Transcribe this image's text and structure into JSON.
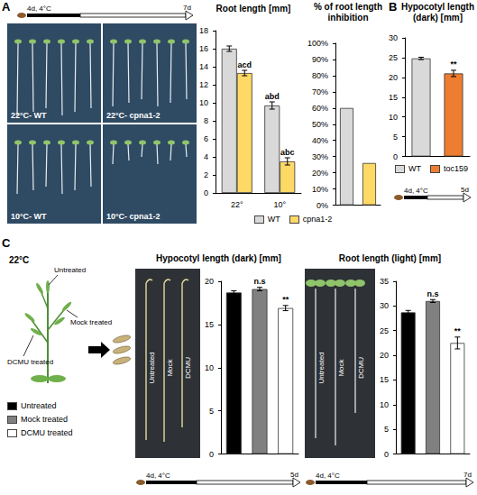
{
  "panel_letters": [
    "A",
    "B",
    "C"
  ],
  "chart_data": [
    {
      "type": "bar",
      "title": "Root length [mm]",
      "categories": [
        "22°",
        "10°"
      ],
      "series": [
        {
          "name": "WT",
          "color": "#d9d9d9",
          "values": [
            16.0,
            9.7
          ],
          "errors": [
            0.3,
            0.4
          ],
          "annotations": [
            null,
            "abd"
          ]
        },
        {
          "name": "cpna1-2",
          "color": "#ffd966",
          "values": [
            13.3,
            3.5
          ],
          "errors": [
            0.3,
            0.4
          ],
          "annotations": [
            "acd",
            "abc"
          ]
        }
      ],
      "ylim": [
        0,
        18
      ],
      "yticks": [
        0,
        2,
        4,
        6,
        8,
        10,
        12,
        14,
        16,
        18
      ],
      "grid": false,
      "legend": "bottom"
    },
    {
      "type": "bar",
      "title": "% of root length inhibition",
      "categories": [
        null,
        null
      ],
      "values": [
        60,
        26
      ],
      "colors": [
        "#d9d9d9",
        "#ffd966"
      ],
      "ylim": [
        0,
        100
      ],
      "yticks": [
        {
          "value": 0,
          "label": "0%"
        },
        {
          "value": 10,
          "label": "10%"
        },
        {
          "value": 20,
          "label": "20%"
        },
        {
          "value": 30,
          "label": "30%"
        },
        {
          "value": 40,
          "label": "40%"
        },
        {
          "value": 50,
          "label": "50%"
        },
        {
          "value": 60,
          "label": "60%"
        },
        {
          "value": 70,
          "label": "70%"
        },
        {
          "value": 80,
          "label": "80%"
        },
        {
          "value": 90,
          "label": "90%"
        },
        {
          "value": 100,
          "label": "100%"
        }
      ],
      "grid": false,
      "tick_labels": "y"
    },
    {
      "type": "bar",
      "title": "Hypocotyl length (dark) [mm]",
      "categories": [
        "WT",
        "toc159"
      ],
      "values": [
        24.8,
        21.0
      ],
      "errors": [
        0.3,
        0.8
      ],
      "annotations": [
        null,
        "**"
      ],
      "colors": [
        "#d9d9d9",
        "#ed7d31"
      ],
      "ylim": [
        0,
        30
      ],
      "yticks": [
        0,
        5,
        10,
        15,
        20,
        25,
        30
      ],
      "grid": false,
      "tick_labels": "y",
      "legend": "bottom"
    },
    {
      "type": "bar",
      "title": "Hypocotyl length (dark) [mm]",
      "categories": [
        "Untreated",
        "Mock treated",
        "DCMU treated"
      ],
      "values": [
        18.7,
        19.1,
        16.9
      ],
      "errors": [
        0.2,
        0.2,
        0.3
      ],
      "annotations": [
        null,
        "n.s",
        "**"
      ],
      "colors": [
        "#000000",
        "#808080",
        "#ffffff"
      ],
      "ylim": [
        0,
        20
      ],
      "yticks": [
        0,
        5,
        10,
        15,
        20
      ],
      "grid": false,
      "tick_labels": "y",
      "legend": "left"
    },
    {
      "type": "bar",
      "title": "Root length (light) [mm]",
      "categories": [
        null,
        null,
        null
      ],
      "values": [
        28.7,
        31.0,
        22.5
      ],
      "errors": [
        0.4,
        0.3,
        1.2
      ],
      "annotations": [
        null,
        "n.s",
        "**"
      ],
      "colors": [
        "#000000",
        "#808080",
        "#ffffff"
      ],
      "ylim": [
        0,
        35
      ],
      "yticks": [
        0,
        5,
        10,
        15,
        20,
        25,
        30,
        35
      ],
      "grid": false,
      "tick_labels": "y"
    }
  ],
  "photos": [
    {
      "labels": [
        "22°C- WT",
        "22°C- cpna1-2",
        "10°C- WT",
        "10°C- cpna1-2"
      ]
    },
    {
      "labels": [
        "Untreated",
        "Mock",
        "DCMU"
      ]
    },
    {
      "labels": [
        "Untreated",
        "Mock",
        "DCMU"
      ]
    }
  ],
  "timelines": [
    {
      "start": "4d, 4°C",
      "end": "7d"
    },
    {
      "start": "4d, 4°C",
      "end": "5d"
    },
    {
      "start": "4d, 4°C",
      "end": "5d"
    },
    {
      "start": "4d, 4°C",
      "end": "7d"
    }
  ],
  "schematic": {
    "temperature": "22°C",
    "labels": [
      "Untreated",
      "Mock treated",
      "DCMU treated"
    ]
  }
}
